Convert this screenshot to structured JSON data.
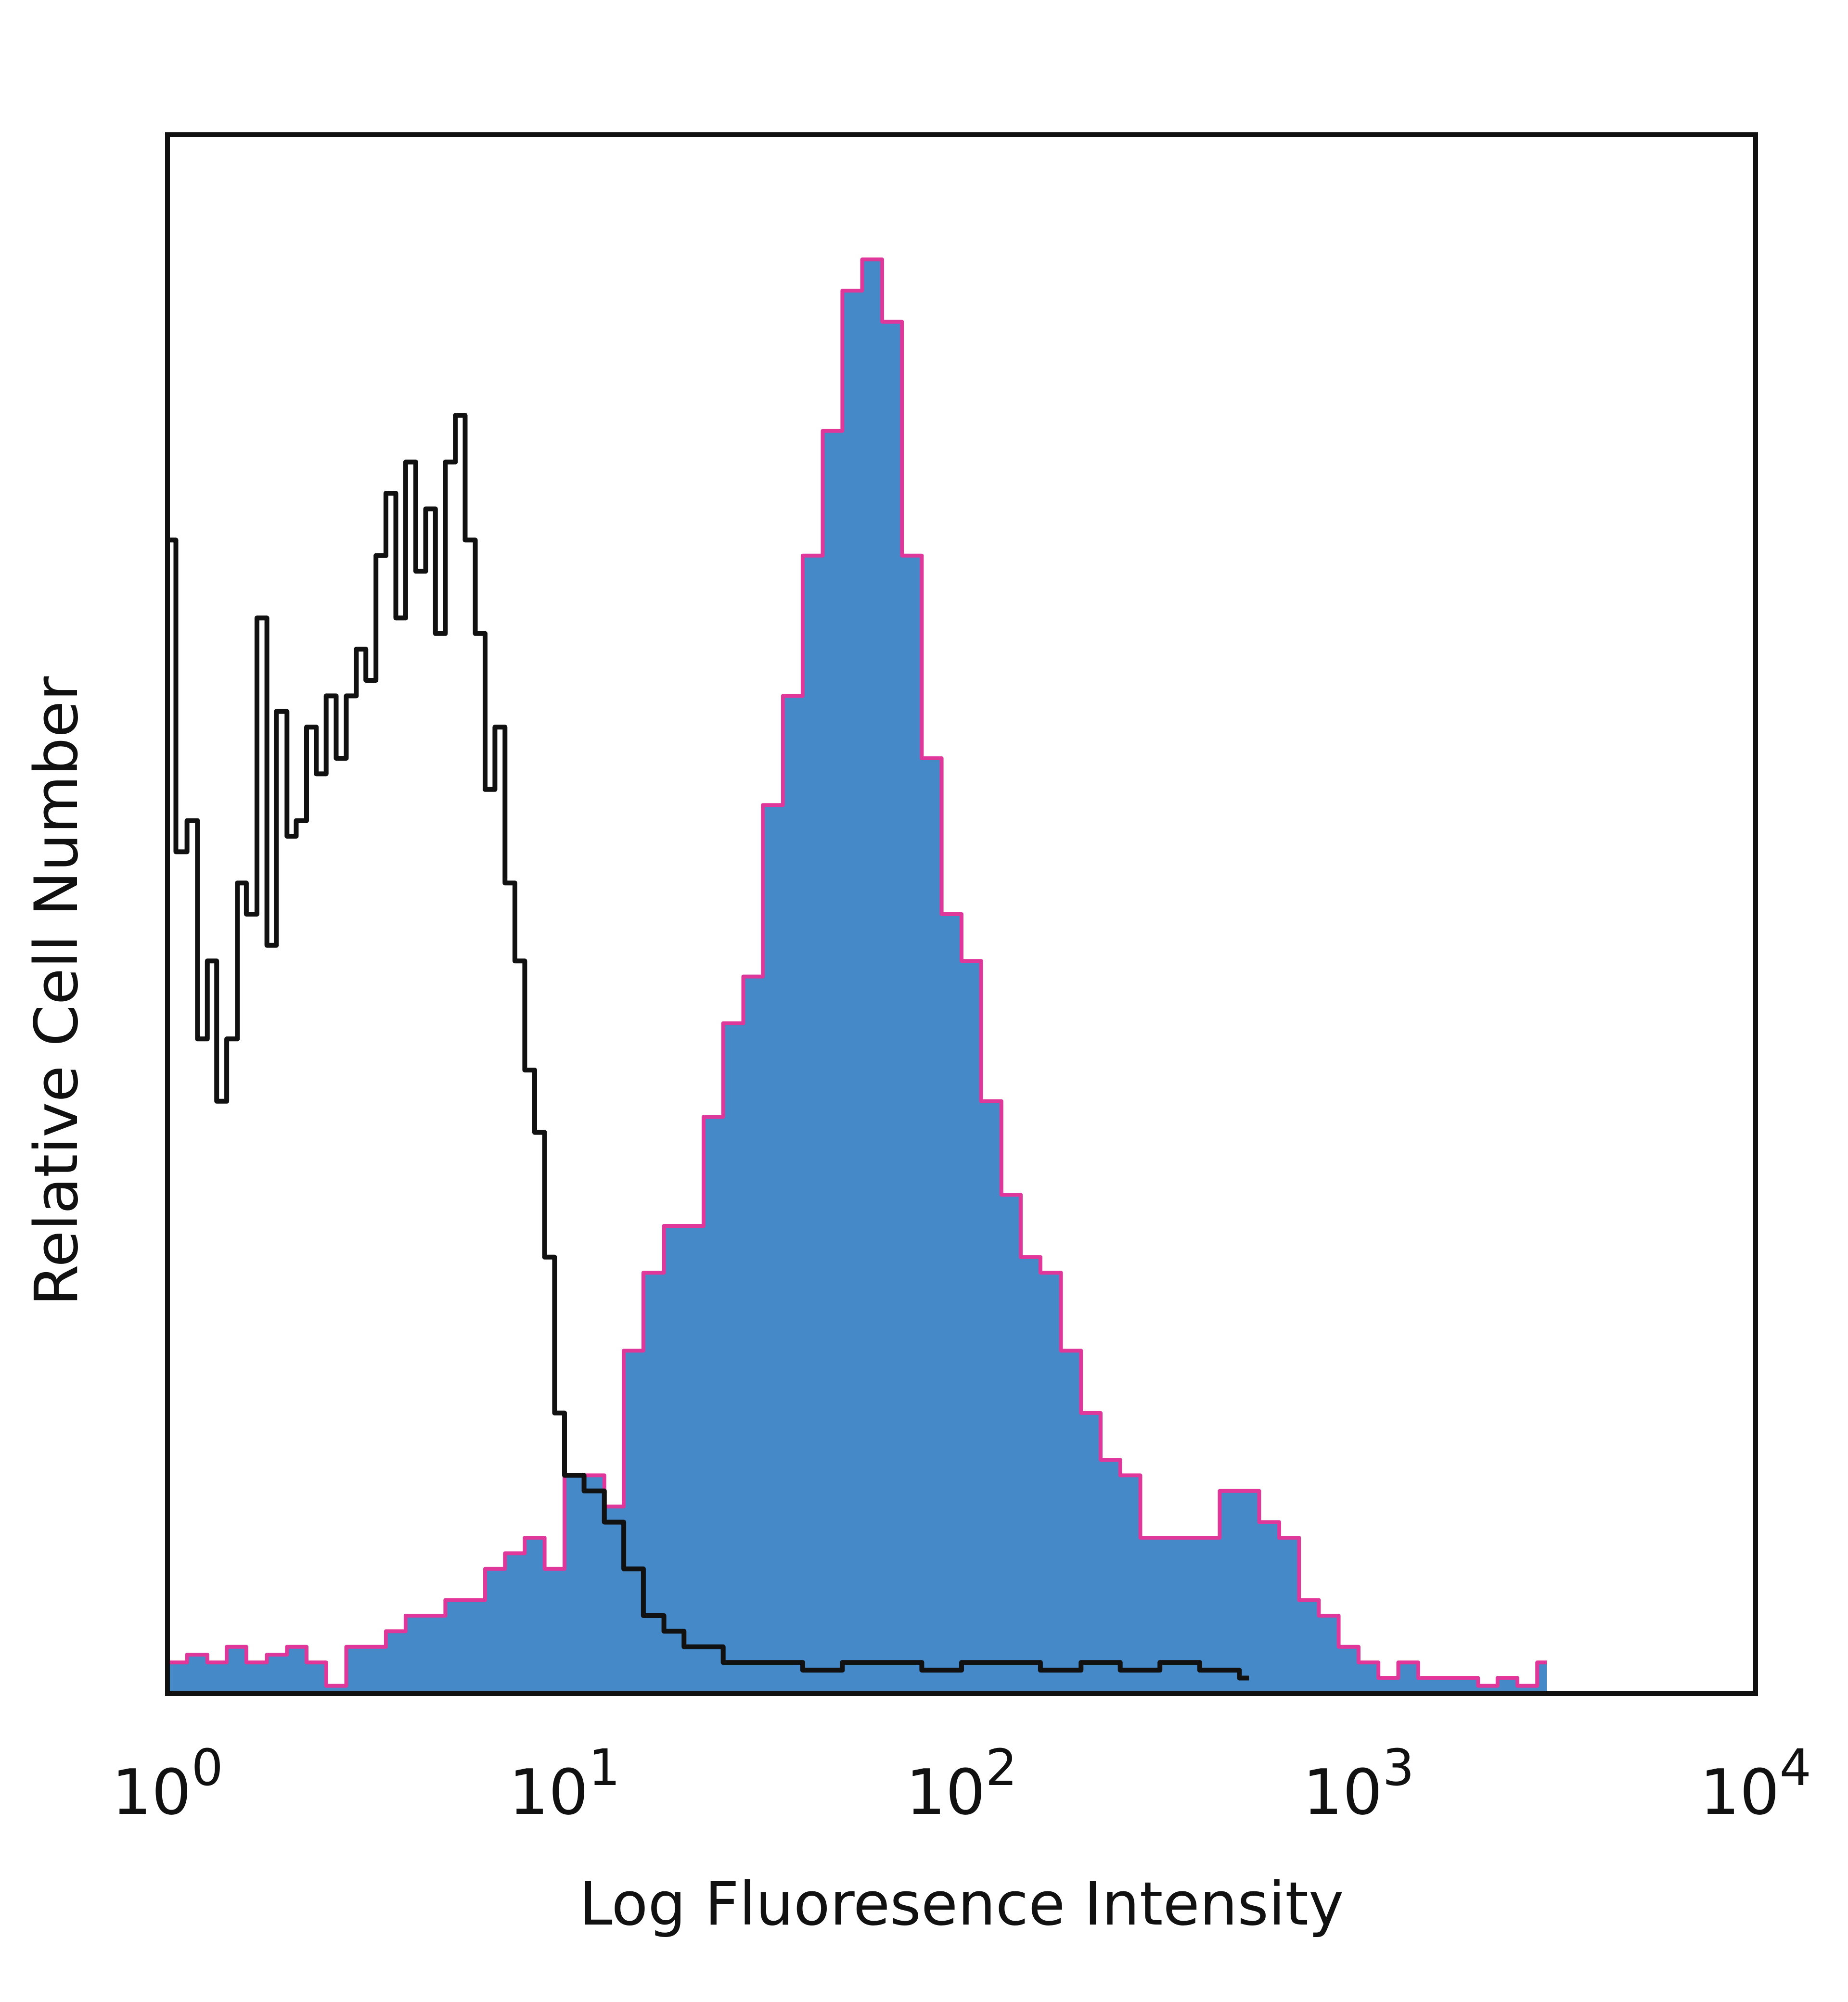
{
  "chart_data": {
    "type": "area",
    "title": "",
    "xlabel": "Log Fluoresence Intensity",
    "ylabel": "Relative Cell Number",
    "x_scale": "log",
    "xlim": [
      1,
      10000
    ],
    "ylim": [
      0,
      1
    ],
    "x_ticks": [
      {
        "value": 1,
        "base": "10",
        "exp": "0"
      },
      {
        "value": 10,
        "base": "10",
        "exp": "1"
      },
      {
        "value": 100,
        "base": "10",
        "exp": "2"
      },
      {
        "value": 1000,
        "base": "10",
        "exp": "3"
      },
      {
        "value": 10000,
        "base": "10",
        "exp": "4"
      }
    ],
    "grid": false,
    "legend": "none",
    "series": [
      {
        "style": "filled",
        "fill_color": "#4589c8",
        "edge_color": "#e0379a",
        "x": [
          1.0,
          1.12,
          1.26,
          1.41,
          1.58,
          1.78,
          2.0,
          2.24,
          2.51,
          2.82,
          3.16,
          3.55,
          3.98,
          4.47,
          5.01,
          5.62,
          6.31,
          7.08,
          7.94,
          8.91,
          10.0,
          11.2,
          12.6,
          14.1,
          15.8,
          17.8,
          20.0,
          22.4,
          25.1,
          28.2,
          31.6,
          35.5,
          39.8,
          44.7,
          50.1,
          56.2,
          63.1,
          70.8,
          79.4,
          89.1,
          100.0,
          112,
          126,
          141,
          158,
          178,
          200,
          224,
          251,
          282,
          316,
          355,
          398,
          447,
          501,
          562,
          631,
          708,
          794,
          891,
          1000,
          1122,
          1259,
          1413,
          1585,
          1778,
          2000,
          2239,
          2512,
          2818
        ],
        "y": [
          0.02,
          0.025,
          0.02,
          0.03,
          0.02,
          0.025,
          0.03,
          0.02,
          0.005,
          0.03,
          0.03,
          0.04,
          0.05,
          0.05,
          0.06,
          0.06,
          0.08,
          0.09,
          0.1,
          0.08,
          0.14,
          0.14,
          0.12,
          0.22,
          0.27,
          0.3,
          0.3,
          0.37,
          0.43,
          0.46,
          0.57,
          0.64,
          0.73,
          0.81,
          0.9,
          0.92,
          0.88,
          0.73,
          0.6,
          0.5,
          0.47,
          0.38,
          0.32,
          0.28,
          0.27,
          0.22,
          0.18,
          0.15,
          0.14,
          0.1,
          0.1,
          0.1,
          0.1,
          0.13,
          0.13,
          0.11,
          0.1,
          0.06,
          0.05,
          0.03,
          0.02,
          0.01,
          0.02,
          0.01,
          0.01,
          0.01,
          0.005,
          0.01,
          0.005,
          0.02
        ]
      },
      {
        "style": "line",
        "line_color": "#111111",
        "x": [
          1.0,
          1.05,
          1.12,
          1.19,
          1.26,
          1.33,
          1.41,
          1.5,
          1.58,
          1.68,
          1.78,
          1.88,
          2.0,
          2.11,
          2.24,
          2.37,
          2.51,
          2.66,
          2.82,
          2.99,
          3.16,
          3.35,
          3.55,
          3.76,
          3.98,
          4.22,
          4.47,
          4.73,
          5.01,
          5.31,
          5.62,
          5.96,
          6.31,
          6.68,
          7.08,
          7.5,
          7.94,
          8.41,
          8.91,
          9.44,
          10.0,
          11.2,
          12.6,
          14.1,
          15.8,
          17.8,
          20.0,
          25.1,
          31.6,
          39.8,
          50.1,
          63.1,
          79.4,
          100.0,
          126,
          158,
          200,
          251,
          316,
          398,
          501
        ],
        "y": [
          0.74,
          0.54,
          0.56,
          0.42,
          0.47,
          0.38,
          0.42,
          0.52,
          0.5,
          0.69,
          0.48,
          0.63,
          0.55,
          0.56,
          0.62,
          0.59,
          0.64,
          0.6,
          0.64,
          0.67,
          0.65,
          0.73,
          0.77,
          0.69,
          0.79,
          0.72,
          0.76,
          0.68,
          0.79,
          0.82,
          0.74,
          0.68,
          0.58,
          0.62,
          0.52,
          0.47,
          0.4,
          0.36,
          0.28,
          0.18,
          0.14,
          0.13,
          0.11,
          0.08,
          0.05,
          0.04,
          0.03,
          0.02,
          0.02,
          0.015,
          0.02,
          0.02,
          0.015,
          0.02,
          0.02,
          0.015,
          0.02,
          0.015,
          0.02,
          0.015,
          0.01
        ]
      }
    ]
  }
}
